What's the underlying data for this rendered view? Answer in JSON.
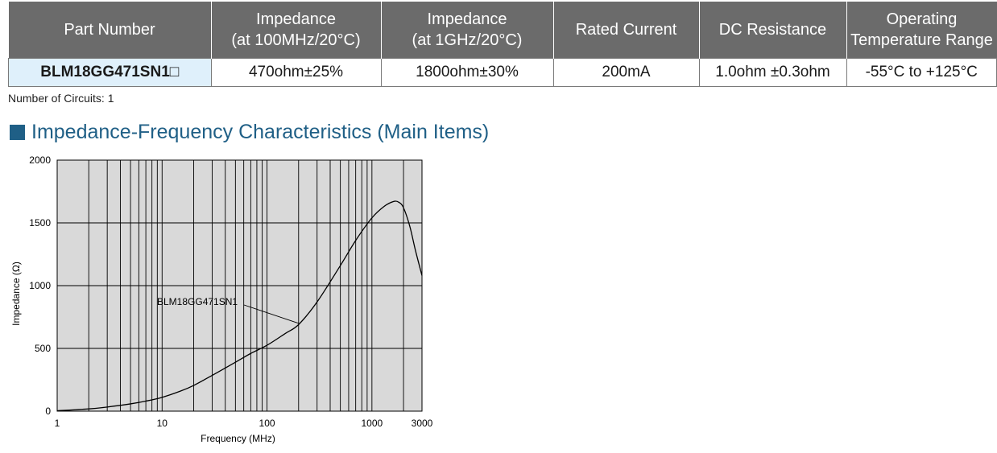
{
  "table": {
    "headers": [
      [
        "Part Number"
      ],
      [
        "Impedance",
        "(at 100MHz/20°C)"
      ],
      [
        "Impedance",
        "(at 1GHz/20°C)"
      ],
      [
        "Rated Current"
      ],
      [
        "DC Resistance"
      ],
      [
        "Operating",
        "Temperature Range"
      ]
    ],
    "row": [
      "BLM18GG471SN1□",
      "470ohm±25%",
      "1800ohm±30%",
      "200mA",
      "1.0ohm ±0.3ohm",
      "-55°C to +125°C"
    ]
  },
  "circuits": "Number of Circuits: 1",
  "section_title": "Impedance-Frequency Characteristics (Main Items)",
  "chart_data": {
    "type": "line",
    "title": "",
    "xlabel": "Frequency (MHz)",
    "ylabel": "Impedance (Ω)",
    "x_scale": "log",
    "xlim": [
      1,
      3000
    ],
    "ylim": [
      0,
      2000
    ],
    "x_ticks": [
      1,
      10,
      100,
      1000,
      3000
    ],
    "x_tick_labels": [
      "1",
      "10",
      "100",
      "1000",
      "3000"
    ],
    "y_ticks": [
      0,
      500,
      1000,
      1500,
      2000
    ],
    "y_tick_labels": [
      "0",
      "500",
      "1000",
      "1500",
      "2000"
    ],
    "grid": true,
    "background": "#d9d9d9",
    "series": [
      {
        "name": "BLM18GG471SN1",
        "x": [
          1,
          2,
          3,
          5,
          7,
          10,
          15,
          20,
          30,
          50,
          70,
          100,
          150,
          200,
          300,
          500,
          700,
          1000,
          1300,
          1600,
          1800,
          2000,
          2300,
          2600,
          3000
        ],
        "y": [
          3,
          18,
          33,
          58,
          80,
          110,
          160,
          205,
          285,
          390,
          460,
          525,
          620,
          690,
          870,
          1160,
          1360,
          1540,
          1630,
          1670,
          1665,
          1620,
          1470,
          1280,
          1080
        ]
      }
    ],
    "annotation": {
      "text": "BLM18GG471SN1",
      "x": 200,
      "y": 700
    }
  }
}
